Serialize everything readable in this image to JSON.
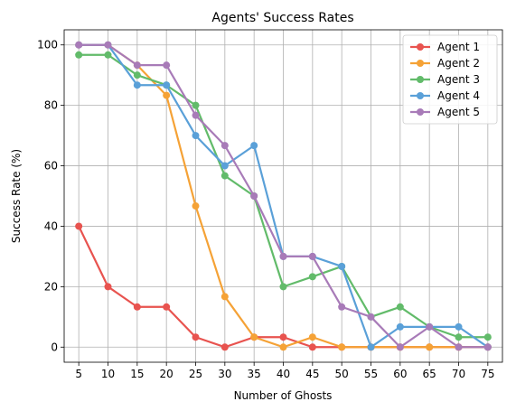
{
  "chart_data": {
    "type": "line",
    "title": "Agents' Success Rates",
    "xlabel": "Number of Ghosts",
    "ylabel": "Success Rate (%)",
    "x": [
      5,
      10,
      15,
      20,
      25,
      30,
      35,
      40,
      45,
      50,
      55,
      60,
      65,
      70,
      75
    ],
    "x_ticks": [
      "5",
      "10",
      "15",
      "20",
      "25",
      "30",
      "35",
      "40",
      "45",
      "50",
      "55",
      "60",
      "65",
      "70",
      "75"
    ],
    "y_ticks": [
      "0",
      "20",
      "40",
      "60",
      "80",
      "100"
    ],
    "xlim": [
      2.5,
      77.5
    ],
    "ylim": [
      -5,
      105
    ],
    "grid": true,
    "legend_position": "top-right",
    "series": [
      {
        "name": "Agent 1",
        "color": "#e8534f",
        "values": [
          40,
          20,
          13.3,
          13.3,
          3.3,
          0,
          3.3,
          3.3,
          0,
          0,
          0,
          0,
          0,
          0,
          0
        ]
      },
      {
        "name": "Agent 2",
        "color": "#f5a236",
        "values": [
          100,
          100,
          93.3,
          83.3,
          46.7,
          16.7,
          3.3,
          0,
          3.3,
          0,
          0,
          0,
          0,
          0,
          0
        ]
      },
      {
        "name": "Agent 3",
        "color": "#62bb6a",
        "values": [
          96.7,
          96.7,
          90,
          86.7,
          80,
          56.7,
          50,
          20,
          23.3,
          26.7,
          10,
          13.3,
          6.7,
          3.3,
          3.3
        ]
      },
      {
        "name": "Agent 4",
        "color": "#5aa0d8",
        "values": [
          100,
          100,
          86.7,
          86.7,
          70,
          60,
          66.7,
          30,
          30,
          26.7,
          0,
          6.7,
          6.7,
          6.7,
          0
        ]
      },
      {
        "name": "Agent 5",
        "color": "#a87bb8",
        "values": [
          100,
          100,
          93.3,
          93.3,
          76.7,
          66.7,
          50,
          30,
          30,
          13.3,
          10,
          0,
          6.7,
          0,
          0
        ]
      }
    ]
  }
}
